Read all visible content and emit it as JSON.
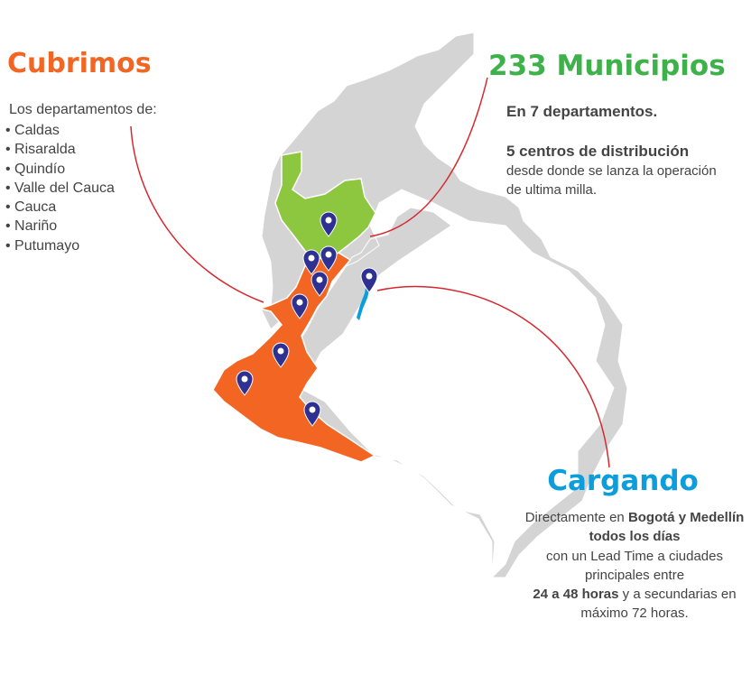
{
  "coverage": {
    "title": "Cubrimos",
    "intro": "Los departamentos de:",
    "departments": [
      "Caldas",
      "Risaralda",
      "Quindío",
      "Valle del Cauca",
      "Cauca",
      "Nariño",
      "Putumayo"
    ]
  },
  "municipalities": {
    "title": "233 Municipios",
    "departments_line": "En 7 departamentos.",
    "centers_title": "5 centros de distribución",
    "centers_desc": "desde donde se lanza la operación de ultima milla."
  },
  "loading": {
    "title": "Cargando",
    "line1": "Directamente en ",
    "line1_bold": "Bogotá y Medellín todos los días",
    "line2": "con un Lead Time a ciudades principales entre",
    "line3_bold": "24 a 48 horas",
    "line3": " y a secundarias en máximo 72 horas."
  },
  "colors": {
    "orange": "#f26522",
    "green": "#8dc63f",
    "blue": "#0c9ddb",
    "gray_region": "#d4d4d4",
    "pin": "#2e3192",
    "connector": "#d7282f"
  },
  "icons": [
    "location-pin-icon"
  ]
}
